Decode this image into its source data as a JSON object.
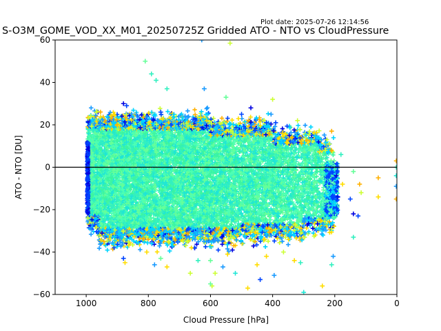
{
  "figure": {
    "plot_date_text": "Plot date: 2025-07-26 12:14:56"
  },
  "chart_data": {
    "type": "scatter",
    "title": "S-O3M_GOME_VOD_XX_M01_20250725Z Gridded ATO - NTO vs CloudPressure",
    "xlabel": "Cloud Pressure [hPa]",
    "ylabel": "ATO - NTO [DU]",
    "xlim": [
      1100,
      0
    ],
    "ylim": [
      -60,
      60
    ],
    "x_inverted": true,
    "xticks": [
      1000,
      800,
      600,
      400,
      200,
      0
    ],
    "yticks": [
      -60,
      -40,
      -20,
      0,
      20,
      40,
      60
    ],
    "xtick_labels": [
      "1000",
      "800",
      "600",
      "400",
      "200",
      "0"
    ],
    "ytick_labels": [
      "−60",
      "−40",
      "−20",
      "0",
      "20",
      "40",
      "60"
    ],
    "reference_line": {
      "y": 0,
      "color": "#000000"
    },
    "marker": "+",
    "grid": false,
    "colors": {
      "dense": [
        "#4dffb3",
        "#33f0c0",
        "#1ee6d6",
        "#3cf5a0",
        "#66ff99"
      ],
      "edge": [
        "#00d4ff",
        "#1a9bff",
        "#0044ff",
        "#0000e0",
        "#ccff33",
        "#ffdd00",
        "#ffb000"
      ]
    },
    "cloud": {
      "x_range": [
        995,
        200
      ],
      "core_band": [
        -22,
        18
      ],
      "outer_band": [
        -35,
        30
      ],
      "point_count_estimate": "dense (tens of thousands)"
    },
    "points": [
      {
        "x": 628,
        "y": 60,
        "c": "#1a9bff"
      },
      {
        "x": 537,
        "y": 58.5,
        "c": "#ccff33"
      },
      {
        "x": 810,
        "y": 50,
        "c": "#66ff99"
      },
      {
        "x": 790,
        "y": 44,
        "c": "#33f0c0"
      },
      {
        "x": 775,
        "y": 41,
        "c": "#33f0c0"
      },
      {
        "x": 740,
        "y": 37,
        "c": "#33f0c0"
      },
      {
        "x": 620,
        "y": 37,
        "c": "#1a9bff"
      },
      {
        "x": 400,
        "y": 32,
        "c": "#ccff33"
      },
      {
        "x": 550,
        "y": 33,
        "c": "#66ff99"
      },
      {
        "x": 880,
        "y": 30,
        "c": "#0000e0"
      },
      {
        "x": 870,
        "y": 29,
        "c": "#0044ff"
      },
      {
        "x": 760,
        "y": 26,
        "c": "#0044ff"
      },
      {
        "x": 470,
        "y": 28,
        "c": "#0000e0"
      },
      {
        "x": 500,
        "y": 25,
        "c": "#0044ff"
      },
      {
        "x": 405,
        "y": 25,
        "c": "#1a9bff"
      },
      {
        "x": 320,
        "y": 22,
        "c": "#ccff33"
      },
      {
        "x": 420,
        "y": 21,
        "c": "#0044ff"
      },
      {
        "x": 390,
        "y": 21,
        "c": "#0044ff"
      },
      {
        "x": 210,
        "y": 17,
        "c": "#ffb000"
      },
      {
        "x": 230,
        "y": 8,
        "c": "#ccff33"
      },
      {
        "x": 180,
        "y": 6,
        "c": "#33f0c0"
      },
      {
        "x": 195,
        "y": -4,
        "c": "#0000e0"
      },
      {
        "x": 190,
        "y": -14,
        "c": "#0000e0"
      },
      {
        "x": 175,
        "y": -8,
        "c": "#ffdd00"
      },
      {
        "x": 150,
        "y": -15,
        "c": "#0044ff"
      },
      {
        "x": 140,
        "y": -2,
        "c": "#66ff99"
      },
      {
        "x": 120,
        "y": -8,
        "c": "#ffb000"
      },
      {
        "x": 115,
        "y": -12,
        "c": "#ccff33"
      },
      {
        "x": 140,
        "y": -22,
        "c": "#0000e0"
      },
      {
        "x": 125,
        "y": -23,
        "c": "#0044ff"
      },
      {
        "x": 140,
        "y": -33,
        "c": "#33f0c0"
      },
      {
        "x": 60,
        "y": -5,
        "c": "#ffb000"
      },
      {
        "x": 60,
        "y": -14,
        "c": "#ffdd00"
      },
      {
        "x": 2,
        "y": 3,
        "c": "#ffb000"
      },
      {
        "x": 2,
        "y": 0,
        "c": "#33f0c0"
      },
      {
        "x": 2,
        "y": -4,
        "c": "#1ee6d6"
      },
      {
        "x": 2,
        "y": -9,
        "c": "#1a9bff"
      },
      {
        "x": 2,
        "y": -15,
        "c": "#ffb000"
      },
      {
        "x": 205,
        "y": -42,
        "c": "#1a9bff"
      },
      {
        "x": 210,
        "y": -46,
        "c": "#33f0c0"
      },
      {
        "x": 240,
        "y": -56,
        "c": "#ffdd00"
      },
      {
        "x": 300,
        "y": -59,
        "c": "#1ee6d6"
      },
      {
        "x": 310,
        "y": -45,
        "c": "#33f0c0"
      },
      {
        "x": 330,
        "y": -44,
        "c": "#ffdd00"
      },
      {
        "x": 395,
        "y": -51,
        "c": "#1a9bff"
      },
      {
        "x": 440,
        "y": -53,
        "c": "#0044ff"
      },
      {
        "x": 480,
        "y": -57,
        "c": "#ffdd00"
      },
      {
        "x": 520,
        "y": -50,
        "c": "#1ee6d6"
      },
      {
        "x": 450,
        "y": -46,
        "c": "#ffdd00"
      },
      {
        "x": 595,
        "y": -56,
        "c": "#ccff33"
      },
      {
        "x": 600,
        "y": -55,
        "c": "#66ff99"
      },
      {
        "x": 585,
        "y": -50,
        "c": "#ccff33"
      },
      {
        "x": 600,
        "y": -44,
        "c": "#66ff99"
      },
      {
        "x": 640,
        "y": -44,
        "c": "#33f0c0"
      },
      {
        "x": 665,
        "y": -50,
        "c": "#ccff33"
      },
      {
        "x": 740,
        "y": -47,
        "c": "#ffdd00"
      },
      {
        "x": 780,
        "y": -46,
        "c": "#1a9bff"
      },
      {
        "x": 760,
        "y": -43,
        "c": "#66ff99"
      },
      {
        "x": 880,
        "y": -43,
        "c": "#0044ff"
      },
      {
        "x": 875,
        "y": -45,
        "c": "#ffdd00"
      },
      {
        "x": 805,
        "y": -40,
        "c": "#ffdd00"
      },
      {
        "x": 560,
        "y": -47,
        "c": "#1a9bff"
      },
      {
        "x": 545,
        "y": -41,
        "c": "#ffdd00"
      },
      {
        "x": 420,
        "y": -42,
        "c": "#ffdd00"
      },
      {
        "x": 365,
        "y": -40,
        "c": "#ccff33"
      }
    ]
  }
}
